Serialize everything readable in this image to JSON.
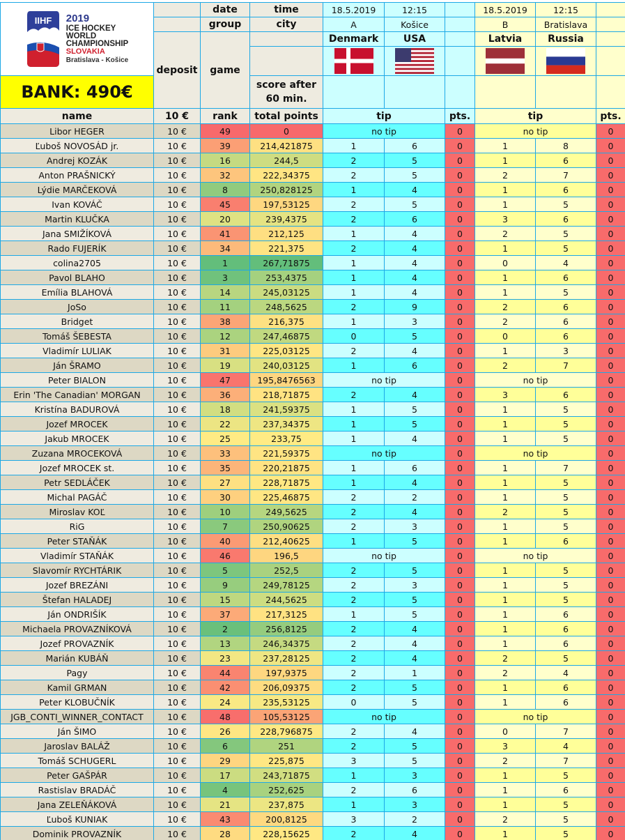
{
  "logo": {
    "brand": "IIHF",
    "year": "2019",
    "line1": "ICE HOCKEY",
    "line2": "WORLD",
    "line3": "CHAMPIONSHIP",
    "country": "SLOVAKIA",
    "cities": "Bratislava - Košice"
  },
  "bank": "BANK: 490€",
  "header": {
    "date_label": "date",
    "time_label": "time",
    "group_label": "group",
    "city_label": "city",
    "deposit_label": "deposit",
    "game_label": "game",
    "score_label_1": "score after",
    "score_label_2": "60 min.",
    "name_col": "name",
    "deposit_col": "10 €",
    "rank_col": "rank",
    "total_col": "total points",
    "tip_col": "tip",
    "pts_col": "pts."
  },
  "games": [
    {
      "date": "18.5.2019",
      "time": "12:15",
      "group": "A",
      "city": "Košice",
      "home": "Denmark",
      "away": "USA",
      "home_flag": "denmark-flag",
      "away_flag": "usa-flag",
      "color": "#ccffff"
    },
    {
      "date": "18.5.2019",
      "time": "12:15",
      "group": "B",
      "city": "Bratislava",
      "home": "Latvia",
      "away": "Russia",
      "home_flag": "latvia-flag",
      "away_flag": "russia-flag",
      "color": "#ffffcc"
    }
  ],
  "no_tip_label": "no tip",
  "colors": {
    "green": "#63be7b",
    "yellow": "#ffeb84",
    "red": "#f8696b",
    "pts": "#f86b6b",
    "grid": "#1ca8e6"
  },
  "rows": [
    {
      "name": "Libor HEGER",
      "deposit": "10 €",
      "rank": 49,
      "total": "0",
      "tips": [
        null,
        null
      ],
      "pts": [
        "0",
        "0"
      ]
    },
    {
      "name": "Ľuboš NOVOSÁD jr.",
      "deposit": "10 €",
      "rank": 39,
      "total": "214,421875",
      "tips": [
        [
          "1",
          "6"
        ],
        [
          "1",
          "8"
        ]
      ],
      "pts": [
        "0",
        "0"
      ]
    },
    {
      "name": "Andrej KOZÁK",
      "deposit": "10 €",
      "rank": 16,
      "total": "244,5",
      "tips": [
        [
          "2",
          "5"
        ],
        [
          "1",
          "6"
        ]
      ],
      "pts": [
        "0",
        "0"
      ]
    },
    {
      "name": "Anton PRAŠNICKÝ",
      "deposit": "10 €",
      "rank": 32,
      "total": "222,34375",
      "tips": [
        [
          "2",
          "5"
        ],
        [
          "2",
          "7"
        ]
      ],
      "pts": [
        "0",
        "0"
      ]
    },
    {
      "name": "Lýdie MARČEKOVÁ",
      "deposit": "10 €",
      "rank": 8,
      "total": "250,828125",
      "tips": [
        [
          "1",
          "4"
        ],
        [
          "1",
          "6"
        ]
      ],
      "pts": [
        "0",
        "0"
      ]
    },
    {
      "name": "Ivan KOVÁČ",
      "deposit": "10 €",
      "rank": 45,
      "total": "197,53125",
      "tips": [
        [
          "2",
          "5"
        ],
        [
          "1",
          "5"
        ]
      ],
      "pts": [
        "0",
        "0"
      ]
    },
    {
      "name": "Martin KLUČKA",
      "deposit": "10 €",
      "rank": 20,
      "total": "239,4375",
      "tips": [
        [
          "2",
          "6"
        ],
        [
          "3",
          "6"
        ]
      ],
      "pts": [
        "0",
        "0"
      ]
    },
    {
      "name": "Jana SMIŽÍKOVÁ",
      "deposit": "10 €",
      "rank": 41,
      "total": "212,125",
      "tips": [
        [
          "1",
          "4"
        ],
        [
          "2",
          "5"
        ]
      ],
      "pts": [
        "0",
        "0"
      ]
    },
    {
      "name": "Rado FUJERÍK",
      "deposit": "10 €",
      "rank": 34,
      "total": "221,375",
      "tips": [
        [
          "2",
          "4"
        ],
        [
          "1",
          "5"
        ]
      ],
      "pts": [
        "0",
        "0"
      ]
    },
    {
      "name": "colina2705",
      "deposit": "10 €",
      "rank": 1,
      "total": "267,71875",
      "tips": [
        [
          "1",
          "4"
        ],
        [
          "0",
          "4"
        ]
      ],
      "pts": [
        "0",
        "0"
      ]
    },
    {
      "name": "Pavol BLAHO",
      "deposit": "10 €",
      "rank": 3,
      "total": "253,4375",
      "tips": [
        [
          "1",
          "4"
        ],
        [
          "1",
          "6"
        ]
      ],
      "pts": [
        "0",
        "0"
      ]
    },
    {
      "name": "Emília BLAHOVÁ",
      "deposit": "10 €",
      "rank": 14,
      "total": "245,03125",
      "tips": [
        [
          "1",
          "4"
        ],
        [
          "1",
          "5"
        ]
      ],
      "pts": [
        "0",
        "0"
      ]
    },
    {
      "name": "JoSo",
      "deposit": "10 €",
      "rank": 11,
      "total": "248,5625",
      "tips": [
        [
          "2",
          "9"
        ],
        [
          "2",
          "6"
        ]
      ],
      "pts": [
        "0",
        "0"
      ]
    },
    {
      "name": "Bridget",
      "deposit": "10 €",
      "rank": 38,
      "total": "216,375",
      "tips": [
        [
          "1",
          "3"
        ],
        [
          "2",
          "6"
        ]
      ],
      "pts": [
        "0",
        "0"
      ]
    },
    {
      "name": "Tomáš ŠEBESTA",
      "deposit": "10 €",
      "rank": 12,
      "total": "247,46875",
      "tips": [
        [
          "0",
          "5"
        ],
        [
          "0",
          "6"
        ]
      ],
      "pts": [
        "0",
        "0"
      ]
    },
    {
      "name": "Vladimír LULIAK",
      "deposit": "10 €",
      "rank": 31,
      "total": "225,03125",
      "tips": [
        [
          "2",
          "4"
        ],
        [
          "1",
          "3"
        ]
      ],
      "pts": [
        "0",
        "0"
      ]
    },
    {
      "name": "Ján ŠRAMO",
      "deposit": "10 €",
      "rank": 19,
      "total": "240,03125",
      "tips": [
        [
          "1",
          "6"
        ],
        [
          "2",
          "7"
        ]
      ],
      "pts": [
        "0",
        "0"
      ]
    },
    {
      "name": "Peter BIALON",
      "deposit": "10 €",
      "rank": 47,
      "total": "195,8476563",
      "tips": [
        null,
        null
      ],
      "pts": [
        "0",
        "0"
      ]
    },
    {
      "name": "Erin 'The Canadian' MORGAN",
      "deposit": "10 €",
      "rank": 36,
      "total": "218,71875",
      "tips": [
        [
          "2",
          "4"
        ],
        [
          "3",
          "6"
        ]
      ],
      "pts": [
        "0",
        "0"
      ]
    },
    {
      "name": "Kristína BADUROVÁ",
      "deposit": "10 €",
      "rank": 18,
      "total": "241,59375",
      "tips": [
        [
          "1",
          "5"
        ],
        [
          "1",
          "5"
        ]
      ],
      "pts": [
        "0",
        "0"
      ]
    },
    {
      "name": "Jozef MROCEK",
      "deposit": "10 €",
      "rank": 22,
      "total": "237,34375",
      "tips": [
        [
          "1",
          "5"
        ],
        [
          "1",
          "5"
        ]
      ],
      "pts": [
        "0",
        "0"
      ]
    },
    {
      "name": "Jakub MROCEK",
      "deposit": "10 €",
      "rank": 25,
      "total": "233,75",
      "tips": [
        [
          "1",
          "4"
        ],
        [
          "1",
          "5"
        ]
      ],
      "pts": [
        "0",
        "0"
      ]
    },
    {
      "name": "Zuzana MROCEKOVÁ",
      "deposit": "10 €",
      "rank": 33,
      "total": "221,59375",
      "tips": [
        null,
        null
      ],
      "pts": [
        "0",
        "0"
      ]
    },
    {
      "name": "Jozef MROCEK st.",
      "deposit": "10 €",
      "rank": 35,
      "total": "220,21875",
      "tips": [
        [
          "1",
          "6"
        ],
        [
          "1",
          "7"
        ]
      ],
      "pts": [
        "0",
        "0"
      ]
    },
    {
      "name": "Petr SEDLÁČEK",
      "deposit": "10 €",
      "rank": 27,
      "total": "228,71875",
      "tips": [
        [
          "1",
          "4"
        ],
        [
          "1",
          "5"
        ]
      ],
      "pts": [
        "0",
        "0"
      ]
    },
    {
      "name": "Michal PAGÁČ",
      "deposit": "10 €",
      "rank": 30,
      "total": "225,46875",
      "tips": [
        [
          "2",
          "2"
        ],
        [
          "1",
          "5"
        ]
      ],
      "pts": [
        "0",
        "0"
      ]
    },
    {
      "name": "Miroslav KOĽ",
      "deposit": "10 €",
      "rank": 10,
      "total": "249,5625",
      "tips": [
        [
          "2",
          "4"
        ],
        [
          "2",
          "5"
        ]
      ],
      "pts": [
        "0",
        "0"
      ]
    },
    {
      "name": "RiG",
      "deposit": "10 €",
      "rank": 7,
      "total": "250,90625",
      "tips": [
        [
          "2",
          "3"
        ],
        [
          "1",
          "5"
        ]
      ],
      "pts": [
        "0",
        "0"
      ]
    },
    {
      "name": "Peter STAŇÁK",
      "deposit": "10 €",
      "rank": 40,
      "total": "212,40625",
      "tips": [
        [
          "1",
          "5"
        ],
        [
          "1",
          "6"
        ]
      ],
      "pts": [
        "0",
        "0"
      ]
    },
    {
      "name": "Vladimír STAŇÁK",
      "deposit": "10 €",
      "rank": 46,
      "total": "196,5",
      "tips": [
        null,
        null
      ],
      "pts": [
        "0",
        "0"
      ]
    },
    {
      "name": "Slavomír RYCHTÁRIK",
      "deposit": "10 €",
      "rank": 5,
      "total": "252,5",
      "tips": [
        [
          "2",
          "5"
        ],
        [
          "1",
          "5"
        ]
      ],
      "pts": [
        "0",
        "0"
      ]
    },
    {
      "name": "Jozef BREZÁNI",
      "deposit": "10 €",
      "rank": 9,
      "total": "249,78125",
      "tips": [
        [
          "2",
          "3"
        ],
        [
          "1",
          "5"
        ]
      ],
      "pts": [
        "0",
        "0"
      ]
    },
    {
      "name": "Štefan HALADEJ",
      "deposit": "10 €",
      "rank": 15,
      "total": "244,5625",
      "tips": [
        [
          "2",
          "5"
        ],
        [
          "1",
          "5"
        ]
      ],
      "pts": [
        "0",
        "0"
      ]
    },
    {
      "name": "Ján ONDRIŠÍK",
      "deposit": "10 €",
      "rank": 37,
      "total": "217,3125",
      "tips": [
        [
          "1",
          "5"
        ],
        [
          "1",
          "6"
        ]
      ],
      "pts": [
        "0",
        "0"
      ]
    },
    {
      "name": "Michaela PROVAZNÍKOVÁ",
      "deposit": "10 €",
      "rank": 2,
      "total": "256,8125",
      "tips": [
        [
          "2",
          "4"
        ],
        [
          "1",
          "6"
        ]
      ],
      "pts": [
        "0",
        "0"
      ]
    },
    {
      "name": "Jozef PROVAZNÍK",
      "deposit": "10 €",
      "rank": 13,
      "total": "246,34375",
      "tips": [
        [
          "2",
          "4"
        ],
        [
          "1",
          "6"
        ]
      ],
      "pts": [
        "0",
        "0"
      ]
    },
    {
      "name": "Marián KUBÁŇ",
      "deposit": "10 €",
      "rank": 23,
      "total": "237,28125",
      "tips": [
        [
          "2",
          "4"
        ],
        [
          "2",
          "5"
        ]
      ],
      "pts": [
        "0",
        "0"
      ]
    },
    {
      "name": "Pagy",
      "deposit": "10 €",
      "rank": 44,
      "total": "197,9375",
      "tips": [
        [
          "2",
          "1"
        ],
        [
          "2",
          "4"
        ]
      ],
      "pts": [
        "0",
        "0"
      ]
    },
    {
      "name": "Kamil GRMAN",
      "deposit": "10 €",
      "rank": 42,
      "total": "206,09375",
      "tips": [
        [
          "2",
          "5"
        ],
        [
          "1",
          "6"
        ]
      ],
      "pts": [
        "0",
        "0"
      ]
    },
    {
      "name": "Peter KLOBUČNÍK",
      "deposit": "10 €",
      "rank": 24,
      "total": "235,53125",
      "tips": [
        [
          "0",
          "5"
        ],
        [
          "1",
          "6"
        ]
      ],
      "pts": [
        "0",
        "0"
      ]
    },
    {
      "name": "JGB_CONTI_WINNER_CONTACT",
      "deposit": "10 €",
      "rank": 48,
      "total": "105,53125",
      "tips": [
        null,
        null
      ],
      "pts": [
        "0",
        "0"
      ]
    },
    {
      "name": "Ján ŠIMO",
      "deposit": "10 €",
      "rank": 26,
      "total": "228,796875",
      "tips": [
        [
          "2",
          "4"
        ],
        [
          "0",
          "7"
        ]
      ],
      "pts": [
        "0",
        "0"
      ]
    },
    {
      "name": "Jaroslav BALÁŽ",
      "deposit": "10 €",
      "rank": 6,
      "total": "251",
      "tips": [
        [
          "2",
          "5"
        ],
        [
          "3",
          "4"
        ]
      ],
      "pts": [
        "0",
        "0"
      ]
    },
    {
      "name": "Tomáš SCHUGERL",
      "deposit": "10 €",
      "rank": 29,
      "total": "225,875",
      "tips": [
        [
          "3",
          "5"
        ],
        [
          "2",
          "7"
        ]
      ],
      "pts": [
        "0",
        "0"
      ]
    },
    {
      "name": "Peter GAŠPÁR",
      "deposit": "10 €",
      "rank": 17,
      "total": "243,71875",
      "tips": [
        [
          "1",
          "3"
        ],
        [
          "1",
          "5"
        ]
      ],
      "pts": [
        "0",
        "0"
      ]
    },
    {
      "name": "Rastislav BRADÁČ",
      "deposit": "10 €",
      "rank": 4,
      "total": "252,625",
      "tips": [
        [
          "2",
          "6"
        ],
        [
          "1",
          "6"
        ]
      ],
      "pts": [
        "0",
        "0"
      ]
    },
    {
      "name": "Jana ZELEŇÁKOVÁ",
      "deposit": "10 €",
      "rank": 21,
      "total": "237,875",
      "tips": [
        [
          "1",
          "3"
        ],
        [
          "1",
          "5"
        ]
      ],
      "pts": [
        "0",
        "0"
      ]
    },
    {
      "name": "Ľuboš KUNIAK",
      "deposit": "10 €",
      "rank": 43,
      "total": "200,8125",
      "tips": [
        [
          "3",
          "2"
        ],
        [
          "2",
          "5"
        ]
      ],
      "pts": [
        "0",
        "0"
      ]
    },
    {
      "name": "Dominik PROVAZNÍK",
      "deposit": "10 €",
      "rank": 28,
      "total": "228,15625",
      "tips": [
        [
          "2",
          "4"
        ],
        [
          "1",
          "5"
        ]
      ],
      "pts": [
        "0",
        "0"
      ]
    }
  ]
}
